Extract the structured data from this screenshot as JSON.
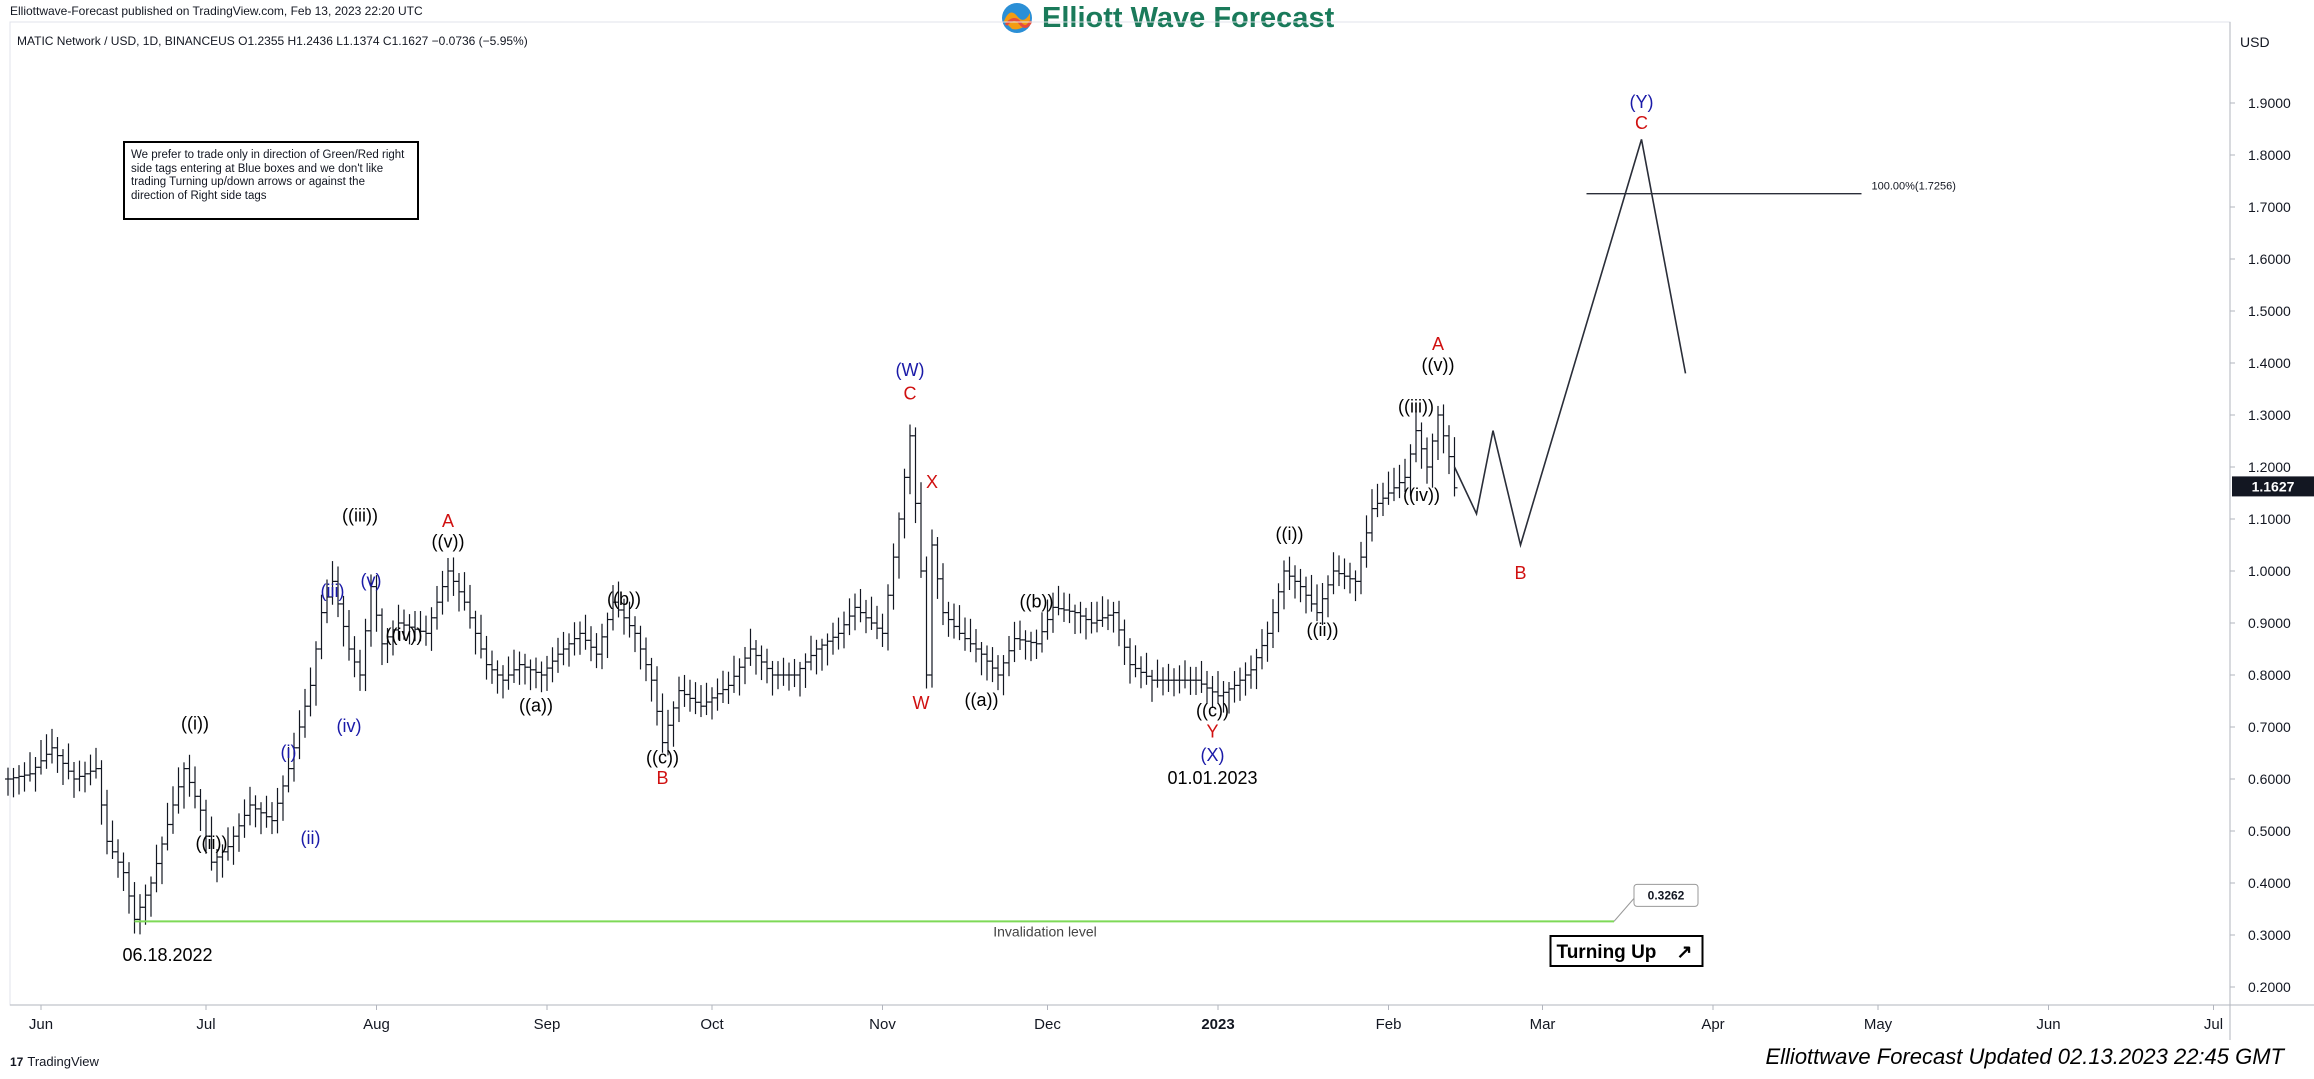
{
  "header": {
    "publisher": "Elliottwave-Forecast published on TradingView.com, Feb 13, 2023 22:20 UTC",
    "logo_text": "Elliott Wave Forecast",
    "symbol_line": "MATIC Network / USD, 1D, BINANCEUS  O1.2355  H1.2436  L1.1374  C1.1627  −0.0736 (−5.95%)",
    "currency": "USD"
  },
  "notice": "We prefer to trade only in direction of Green/Red right side tags entering at Blue boxes and we don't like trading Turning up/down arrows or against the direction of Right side tags",
  "footer": {
    "tv_brand": "TradingView",
    "tv_logo": "17",
    "updated": "Elliottwave Forecast Updated 02.13.2023 22:45 GMT"
  },
  "colors": {
    "price": "#131722",
    "blue_label": "#1a1aa8",
    "red_label": "#d01010",
    "black_label": "#000000",
    "invalidation": "#7ed957",
    "grid_axis": "#b2b5be",
    "logo_green": "#1a7a5a"
  },
  "chart_data": {
    "type": "candlestick",
    "symbol": "MATIC/USD",
    "timeframe": "1D",
    "exchange": "BINANCEUS",
    "ylim": [
      0.18,
      1.98
    ],
    "y_ticks": [
      "1.9000",
      "1.8000",
      "1.7000",
      "1.6000",
      "1.5000",
      "1.4000",
      "1.3000",
      "1.2000",
      "1.1000",
      "1.0000",
      "0.9000",
      "0.8000",
      "0.7000",
      "0.6000",
      "0.5000",
      "0.4000",
      "0.3000",
      "0.2000"
    ],
    "x_ticks": [
      {
        "label": "Jun",
        "date": "2022-06-01",
        "bold": false
      },
      {
        "label": "Jul",
        "date": "2022-07-01",
        "bold": false
      },
      {
        "label": "Aug",
        "date": "2022-08-01",
        "bold": false
      },
      {
        "label": "Sep",
        "date": "2022-09-01",
        "bold": false
      },
      {
        "label": "Oct",
        "date": "2022-10-01",
        "bold": false
      },
      {
        "label": "Nov",
        "date": "2022-11-01",
        "bold": false
      },
      {
        "label": "Dec",
        "date": "2022-12-01",
        "bold": false
      },
      {
        "label": "2023",
        "date": "2023-01-01",
        "bold": true
      },
      {
        "label": "Feb",
        "date": "2023-02-01",
        "bold": false
      },
      {
        "label": "Mar",
        "date": "2023-03-01",
        "bold": false
      },
      {
        "label": "Apr",
        "date": "2023-04-01",
        "bold": false
      },
      {
        "label": "May",
        "date": "2023-05-01",
        "bold": false
      },
      {
        "label": "Jun",
        "date": "2023-06-01",
        "bold": false
      },
      {
        "label": "Jul",
        "date": "2023-07-01",
        "bold": false
      }
    ],
    "last_price": "1.1627",
    "price_path": [
      [
        "2022-05-26",
        0.6
      ],
      [
        "2022-05-30",
        0.61
      ],
      [
        "2022-06-03",
        0.66
      ],
      [
        "2022-06-07",
        0.6
      ],
      [
        "2022-06-11",
        0.62
      ],
      [
        "2022-06-13",
        0.48
      ],
      [
        "2022-06-16",
        0.42
      ],
      [
        "2022-06-18",
        0.33
      ],
      [
        "2022-06-21",
        0.4
      ],
      [
        "2022-06-25",
        0.55
      ],
      [
        "2022-06-27",
        0.62
      ],
      [
        "2022-06-30",
        0.54
      ],
      [
        "2022-07-02",
        0.44
      ],
      [
        "2022-07-05",
        0.47
      ],
      [
        "2022-07-09",
        0.55
      ],
      [
        "2022-07-13",
        0.52
      ],
      [
        "2022-07-16",
        0.62
      ],
      [
        "2022-07-20",
        0.78
      ],
      [
        "2022-07-22",
        0.92
      ],
      [
        "2022-07-24",
        0.98
      ],
      [
        "2022-07-27",
        0.85
      ],
      [
        "2022-07-29",
        0.8
      ],
      [
        "2022-07-31",
        0.97
      ],
      [
        "2022-08-02",
        0.86
      ],
      [
        "2022-08-05",
        0.9
      ],
      [
        "2022-08-10",
        0.88
      ],
      [
        "2022-08-14",
        1.0
      ],
      [
        "2022-08-17",
        0.94
      ],
      [
        "2022-08-21",
        0.82
      ],
      [
        "2022-08-24",
        0.79
      ],
      [
        "2022-08-27",
        0.82
      ],
      [
        "2022-08-31",
        0.8
      ],
      [
        "2022-09-03",
        0.84
      ],
      [
        "2022-09-07",
        0.88
      ],
      [
        "2022-09-10",
        0.84
      ],
      [
        "2022-09-13",
        0.94
      ],
      [
        "2022-09-17",
        0.88
      ],
      [
        "2022-09-20",
        0.79
      ],
      [
        "2022-09-22",
        0.67
      ],
      [
        "2022-09-25",
        0.77
      ],
      [
        "2022-09-29",
        0.74
      ],
      [
        "2022-10-04",
        0.78
      ],
      [
        "2022-10-08",
        0.85
      ],
      [
        "2022-10-12",
        0.8
      ],
      [
        "2022-10-16",
        0.8
      ],
      [
        "2022-10-20",
        0.85
      ],
      [
        "2022-10-24",
        0.88
      ],
      [
        "2022-10-27",
        0.93
      ],
      [
        "2022-10-30",
        0.9
      ],
      [
        "2022-11-01",
        0.88
      ],
      [
        "2022-11-04",
        1.1
      ],
      [
        "2022-11-06",
        1.26
      ],
      [
        "2022-11-08",
        1.0
      ],
      [
        "2022-11-09",
        0.8
      ],
      [
        "2022-11-10",
        1.05
      ],
      [
        "2022-11-12",
        0.92
      ],
      [
        "2022-11-15",
        0.88
      ],
      [
        "2022-11-19",
        0.84
      ],
      [
        "2022-11-22",
        0.8
      ],
      [
        "2022-11-25",
        0.87
      ],
      [
        "2022-11-29",
        0.86
      ],
      [
        "2022-12-02",
        0.93
      ],
      [
        "2022-12-06",
        0.92
      ],
      [
        "2022-12-09",
        0.9
      ],
      [
        "2022-12-13",
        0.92
      ],
      [
        "2022-12-16",
        0.82
      ],
      [
        "2022-12-20",
        0.79
      ],
      [
        "2022-12-24",
        0.79
      ],
      [
        "2022-12-28",
        0.79
      ],
      [
        "2023-01-01",
        0.76
      ],
      [
        "2023-01-04",
        0.78
      ],
      [
        "2023-01-07",
        0.81
      ],
      [
        "2023-01-10",
        0.88
      ],
      [
        "2023-01-13",
        1.0
      ],
      [
        "2023-01-16",
        0.97
      ],
      [
        "2023-01-19",
        0.92
      ],
      [
        "2023-01-22",
        1.0
      ],
      [
        "2023-01-26",
        0.98
      ],
      [
        "2023-01-29",
        1.12
      ],
      [
        "2023-02-01",
        1.15
      ],
      [
        "2023-02-04",
        1.18
      ],
      [
        "2023-02-06",
        1.27
      ],
      [
        "2023-02-08",
        1.2
      ],
      [
        "2023-02-10",
        1.3
      ],
      [
        "2023-02-12",
        1.22
      ],
      [
        "2023-02-13",
        1.16
      ]
    ],
    "projection_path": [
      [
        "2023-02-13",
        1.2
      ],
      [
        "2023-02-17",
        1.11
      ],
      [
        "2023-02-20",
        1.27
      ],
      [
        "2023-02-25",
        1.05
      ],
      [
        "2023-03-19",
        1.83
      ],
      [
        "2023-03-27",
        1.38
      ]
    ],
    "invalidation": {
      "value": 0.3262,
      "value_label": "0.3262",
      "text": "Invalidation level",
      "from": "2022-06-18",
      "to": "2023-03-14"
    },
    "fib_extension": {
      "value": 1.7256,
      "label": "100.00%(1.7256)",
      "from": "2023-03-09",
      "to": "2023-04-28"
    },
    "turning_badge": {
      "text": "Turning Up",
      "arrow": "↗",
      "date": "2023-03-05",
      "value": 0.297
    },
    "annotations": [
      {
        "text": "((i))",
        "date": "2022-06-29",
        "value": 0.695,
        "color": "black"
      },
      {
        "text": "((ii))",
        "date": "2022-07-02",
        "value": 0.465,
        "color": "black"
      },
      {
        "text": "06.18.2022",
        "date": "2022-06-24",
        "value": 0.25,
        "color": "black"
      },
      {
        "text": "(i)",
        "date": "2022-07-16",
        "value": 0.64,
        "color": "blue"
      },
      {
        "text": "(ii)",
        "date": "2022-07-20",
        "value": 0.475,
        "color": "blue"
      },
      {
        "text": "(iii)",
        "date": "2022-07-24",
        "value": 0.95,
        "color": "blue"
      },
      {
        "text": "(iv)",
        "date": "2022-07-27",
        "value": 0.69,
        "color": "blue"
      },
      {
        "text": "(v)",
        "date": "2022-07-31",
        "value": 0.97,
        "color": "blue"
      },
      {
        "text": "((iii))",
        "date": "2022-07-29",
        "value": 1.095,
        "color": "black"
      },
      {
        "text": "((iv))",
        "date": "2022-08-06",
        "value": 0.865,
        "color": "black"
      },
      {
        "text": "((v))",
        "date": "2022-08-14",
        "value": 1.045,
        "color": "black"
      },
      {
        "text": "A",
        "date": "2022-08-14",
        "value": 1.085,
        "color": "red"
      },
      {
        "text": "((a))",
        "date": "2022-08-30",
        "value": 0.73,
        "color": "black"
      },
      {
        "text": "((b))",
        "date": "2022-09-15",
        "value": 0.935,
        "color": "black"
      },
      {
        "text": "((c))",
        "date": "2022-09-22",
        "value": 0.63,
        "color": "black"
      },
      {
        "text": "B",
        "date": "2022-09-22",
        "value": 0.59,
        "color": "red"
      },
      {
        "text": "(W)",
        "date": "2022-11-06",
        "value": 1.375,
        "color": "blue"
      },
      {
        "text": "C",
        "date": "2022-11-06",
        "value": 1.33,
        "color": "red"
      },
      {
        "text": "X",
        "date": "2022-11-10",
        "value": 1.16,
        "color": "red"
      },
      {
        "text": "W",
        "date": "2022-11-08",
        "value": 0.735,
        "color": "red"
      },
      {
        "text": "((a))",
        "date": "2022-11-19",
        "value": 0.74,
        "color": "black"
      },
      {
        "text": "((b))",
        "date": "2022-11-29",
        "value": 0.93,
        "color": "black"
      },
      {
        "text": "((c))",
        "date": "2022-12-31",
        "value": 0.72,
        "color": "black"
      },
      {
        "text": "Y",
        "date": "2022-12-31",
        "value": 0.68,
        "color": "red"
      },
      {
        "text": "(X)",
        "date": "2022-12-31",
        "value": 0.635,
        "color": "blue"
      },
      {
        "text": "01.01.2023",
        "date": "2022-12-31",
        "value": 0.59,
        "color": "black"
      },
      {
        "text": "((i))",
        "date": "2023-01-14",
        "value": 1.06,
        "color": "black"
      },
      {
        "text": "((ii))",
        "date": "2023-01-20",
        "value": 0.875,
        "color": "black"
      },
      {
        "text": "((iii))",
        "date": "2023-02-06",
        "value": 1.305,
        "color": "black"
      },
      {
        "text": "((iv))",
        "date": "2023-02-07",
        "value": 1.135,
        "color": "black"
      },
      {
        "text": "((v))",
        "date": "2023-02-10",
        "value": 1.385,
        "color": "black"
      },
      {
        "text": "A",
        "date": "2023-02-10",
        "value": 1.425,
        "color": "red"
      },
      {
        "text": "B",
        "date": "2023-02-25",
        "value": 0.985,
        "color": "red"
      },
      {
        "text": "(Y)",
        "date": "2023-03-19",
        "value": 1.89,
        "color": "blue"
      },
      {
        "text": "C",
        "date": "2023-03-19",
        "value": 1.85,
        "color": "red"
      }
    ]
  }
}
